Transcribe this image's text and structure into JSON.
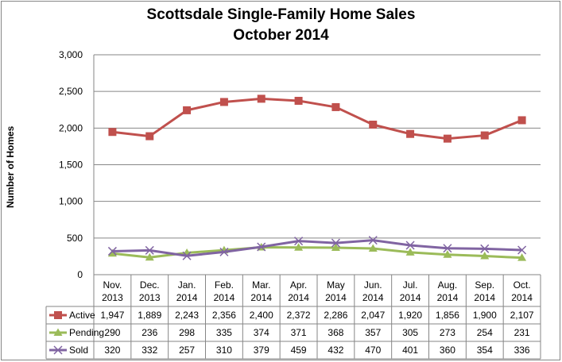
{
  "chart_data": {
    "type": "line",
    "title": "Scottsdale Single-Family Home Sales",
    "subtitle": "October 2014",
    "ylabel": "Number of Homes",
    "xlabel": "",
    "ylim": [
      0,
      3000
    ],
    "yticks": [
      "0",
      "500",
      "1,000",
      "1,500",
      "2,000",
      "2,500",
      "3,000"
    ],
    "ytick_values": [
      0,
      500,
      1000,
      1500,
      2000,
      2500,
      3000
    ],
    "grid": true,
    "legend": "data-table-left",
    "categories": [
      [
        "Nov.",
        "2013"
      ],
      [
        "Dec.",
        "2013"
      ],
      [
        "Jan.",
        "2014"
      ],
      [
        "Feb.",
        "2014"
      ],
      [
        "Mar.",
        "2014"
      ],
      [
        "Apr.",
        "2014"
      ],
      [
        "May",
        "2014"
      ],
      [
        "Jun.",
        "2014"
      ],
      [
        "Jul.",
        "2014"
      ],
      [
        "Aug.",
        "2014"
      ],
      [
        "Sep.",
        "2014"
      ],
      [
        "Oct.",
        "2014"
      ]
    ],
    "series": [
      {
        "name": "Active",
        "color": "#c0504d",
        "marker": "square",
        "values": [
          1947,
          1889,
          2243,
          2356,
          2400,
          2372,
          2286,
          2047,
          1920,
          1856,
          1900,
          2107
        ],
        "labels": [
          "1,947",
          "1,889",
          "2,243",
          "2,356",
          "2,400",
          "2,372",
          "2,286",
          "2,047",
          "1,920",
          "1,856",
          "1,900",
          "2,107"
        ]
      },
      {
        "name": "Pending",
        "color": "#9bbb59",
        "marker": "triangle",
        "values": [
          290,
          236,
          298,
          335,
          374,
          371,
          368,
          357,
          305,
          273,
          254,
          231
        ],
        "labels": [
          "290",
          "236",
          "298",
          "335",
          "374",
          "371",
          "368",
          "357",
          "305",
          "273",
          "254",
          "231"
        ]
      },
      {
        "name": "Sold",
        "color": "#8064a2",
        "marker": "x",
        "values": [
          320,
          332,
          257,
          310,
          379,
          459,
          432,
          470,
          401,
          360,
          354,
          336
        ],
        "labels": [
          "320",
          "332",
          "257",
          "310",
          "379",
          "459",
          "432",
          "470",
          "401",
          "360",
          "354",
          "336"
        ]
      }
    ]
  }
}
